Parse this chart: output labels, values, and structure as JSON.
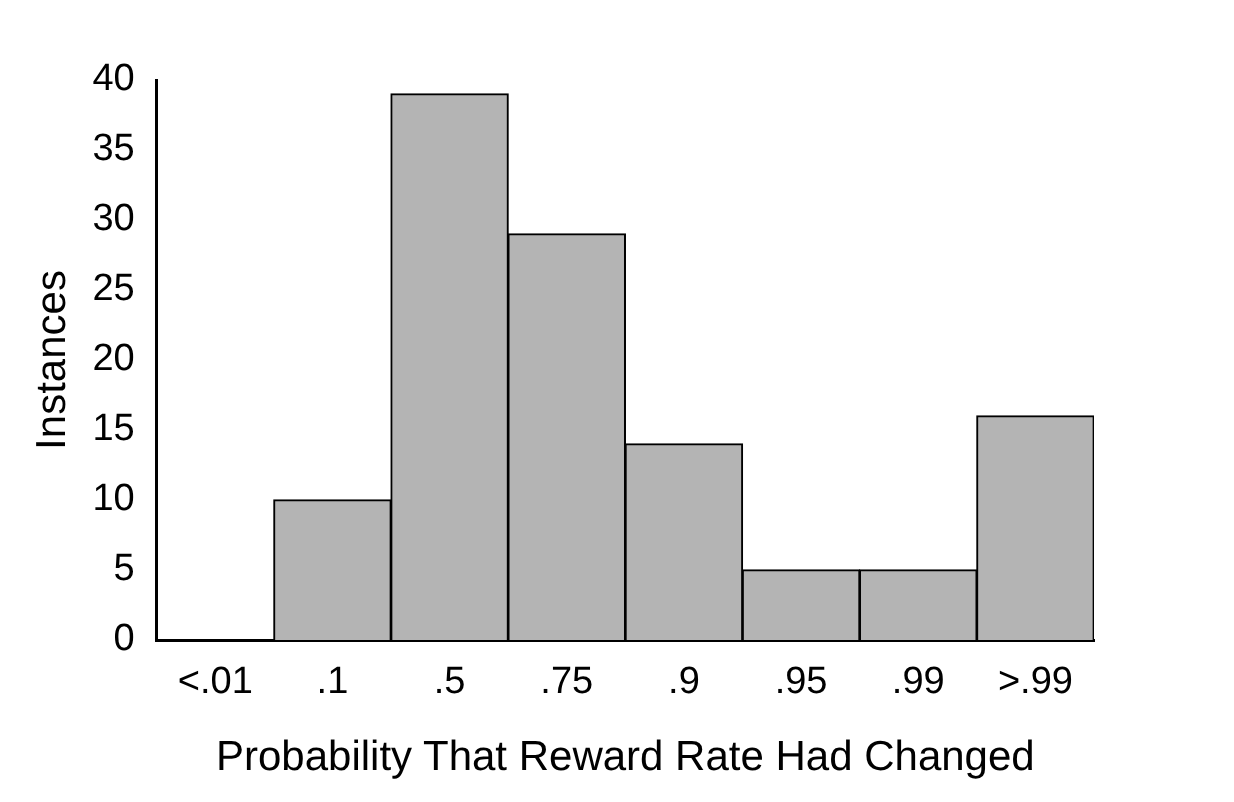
{
  "chart_data": {
    "type": "bar",
    "xlabel": "Probability That Reward Rate Had Changed",
    "ylabel": "Instances",
    "categories": [
      "<.01",
      ".1",
      ".5",
      ".75",
      ".9",
      ".95",
      ".99",
      ">.99"
    ],
    "values": [
      0,
      10,
      39,
      29,
      14,
      5,
      5,
      16
    ],
    "color": "#b4b4b4",
    "ylim": [
      0,
      40
    ],
    "yticks": [
      0,
      5,
      10,
      15,
      20,
      25,
      30,
      35,
      40
    ],
    "grid": false,
    "legend": false
  }
}
